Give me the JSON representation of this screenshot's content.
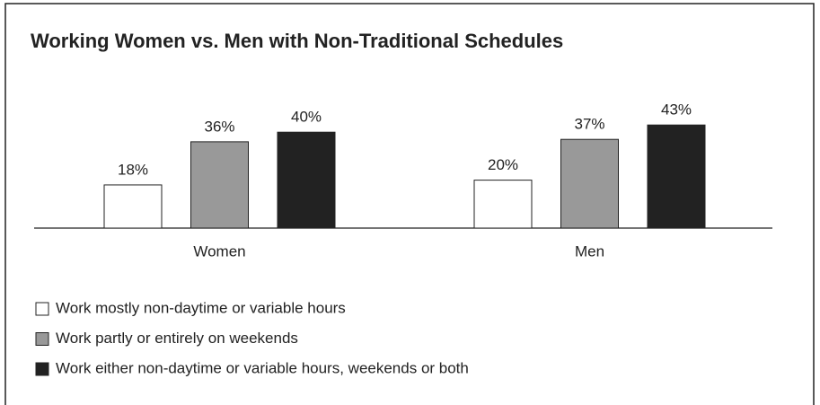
{
  "chart_data": {
    "type": "bar",
    "title": "Working Women vs. Men with Non-Traditional Schedules",
    "categories": [
      "Women",
      "Men"
    ],
    "series": [
      {
        "name": "Work mostly non-daytime or variable hours",
        "color": "#ffffff",
        "values": [
          18,
          20
        ],
        "value_labels": [
          "18%",
          "20%"
        ]
      },
      {
        "name": "Work partly or entirely on weekends",
        "color": "#999999",
        "values": [
          36,
          37
        ],
        "value_labels": [
          "36%",
          "37%"
        ]
      },
      {
        "name": "Work either non-daytime or variable hours, weekends or both",
        "color": "#222222",
        "values": [
          40,
          43
        ],
        "value_labels": [
          "40%",
          "43%"
        ]
      }
    ]
  }
}
